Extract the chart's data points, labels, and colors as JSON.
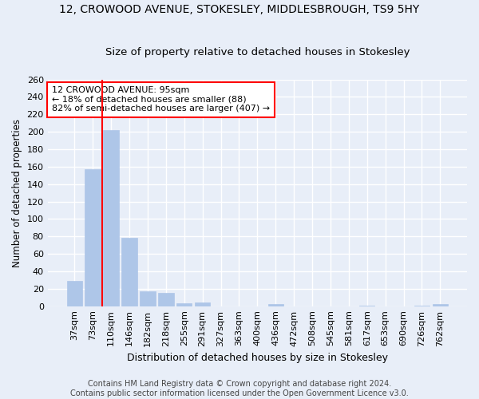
{
  "title1": "12, CROWOOD AVENUE, STOKESLEY, MIDDLESBROUGH, TS9 5HY",
  "title2": "Size of property relative to detached houses in Stokesley",
  "xlabel": "Distribution of detached houses by size in Stokesley",
  "ylabel": "Number of detached properties",
  "categories": [
    "37sqm",
    "73sqm",
    "110sqm",
    "146sqm",
    "182sqm",
    "218sqm",
    "255sqm",
    "291sqm",
    "327sqm",
    "363sqm",
    "400sqm",
    "436sqm",
    "472sqm",
    "508sqm",
    "545sqm",
    "581sqm",
    "617sqm",
    "653sqm",
    "690sqm",
    "726sqm",
    "762sqm"
  ],
  "values": [
    29,
    157,
    202,
    78,
    17,
    15,
    3,
    4,
    0,
    0,
    0,
    2,
    0,
    0,
    0,
    0,
    1,
    0,
    0,
    1,
    2
  ],
  "bar_color": "#aec6e8",
  "bar_edgecolor": "#aec6e8",
  "vline_color": "red",
  "annotation_text": "12 CROWOOD AVENUE: 95sqm\n← 18% of detached houses are smaller (88)\n82% of semi-detached houses are larger (407) →",
  "annotation_box_color": "white",
  "annotation_box_edgecolor": "red",
  "annotation_fontsize": 8,
  "ylim": [
    0,
    260
  ],
  "yticks": [
    0,
    20,
    40,
    60,
    80,
    100,
    120,
    140,
    160,
    180,
    200,
    220,
    240,
    260
  ],
  "title1_fontsize": 10,
  "title2_fontsize": 9.5,
  "xlabel_fontsize": 9,
  "ylabel_fontsize": 8.5,
  "tick_fontsize": 8,
  "footer1": "Contains HM Land Registry data © Crown copyright and database right 2024.",
  "footer2": "Contains public sector information licensed under the Open Government Licence v3.0.",
  "footer_fontsize": 7,
  "background_color": "#e8eef8",
  "plot_background_color": "#e8eef8",
  "grid_color": "white",
  "vline_index": 2
}
